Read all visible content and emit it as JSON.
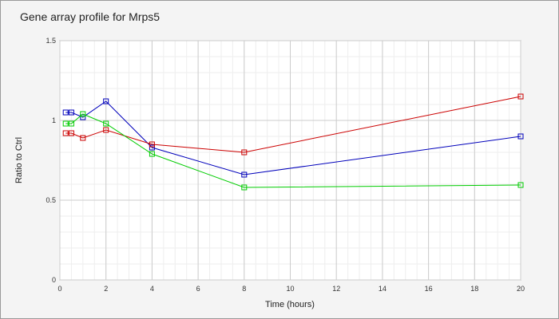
{
  "chart_data": {
    "type": "line",
    "title": "Gene array profile for Mrps5",
    "xlabel": "Time (hours)",
    "ylabel": "Ratio to Ctrl",
    "xlim": [
      0,
      20
    ],
    "ylim": [
      0,
      1.5
    ],
    "x_ticks": [
      "0",
      "2",
      "4",
      "6",
      "8",
      "10",
      "12",
      "14",
      "16",
      "18",
      "20"
    ],
    "y_ticks": [
      "0",
      "0.5",
      "1",
      "1.5"
    ],
    "grid": true,
    "legend": "none",
    "series": [
      {
        "color": "#0000bb",
        "x": [
          0.25,
          0.5,
          1,
          2,
          4,
          8,
          20
        ],
        "y": [
          1.05,
          1.05,
          1.02,
          1.12,
          0.83,
          0.66,
          0.9
        ]
      },
      {
        "color": "#cc0000",
        "x": [
          0.25,
          0.5,
          1,
          2,
          4,
          8,
          20
        ],
        "y": [
          0.92,
          0.92,
          0.89,
          0.94,
          0.85,
          0.8,
          1.15
        ]
      },
      {
        "color": "#00cc00",
        "x": [
          0.25,
          0.5,
          1,
          2,
          4,
          8,
          20
        ],
        "y": [
          0.98,
          0.98,
          1.04,
          0.98,
          0.79,
          0.58,
          0.595
        ]
      }
    ]
  }
}
